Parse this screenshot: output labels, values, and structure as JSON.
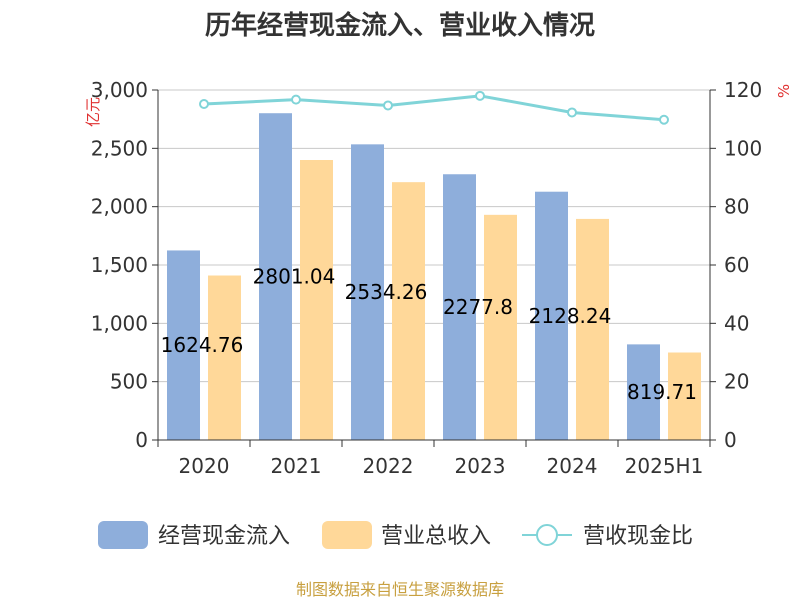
{
  "chart_data": {
    "type": "bar",
    "title": "历年经营现金流入、营业收入情况",
    "categories": [
      "2020",
      "2021",
      "2022",
      "2023",
      "2024",
      "2025H1"
    ],
    "series": [
      {
        "name": "经营现金流入",
        "type": "bar",
        "axis": "left",
        "color": "#8eaedb",
        "values": [
          1624.76,
          2801.04,
          2534.26,
          2277.8,
          2128.24,
          819.71
        ],
        "labels": [
          "1624.76",
          "2801.04",
          "2534.26",
          "2277.8",
          "2128.24",
          "819.71"
        ]
      },
      {
        "name": "营业总收入",
        "type": "bar",
        "axis": "left",
        "color": "#ffd899",
        "values": [
          1410,
          2400,
          2210,
          1930,
          1895,
          750
        ]
      },
      {
        "name": "营收现金比",
        "type": "line",
        "axis": "right",
        "color": "#80d4d8",
        "values": [
          115.2,
          116.7,
          114.7,
          118.0,
          112.3,
          109.8
        ]
      }
    ],
    "y_left": {
      "label": "亿元",
      "min": 0,
      "max": 3000,
      "ticks": [
        "0",
        "500",
        "1,000",
        "1,500",
        "2,000",
        "2,500",
        "3,000"
      ]
    },
    "y_right": {
      "label": "%",
      "min": 0,
      "max": 120,
      "ticks": [
        "0",
        "20",
        "40",
        "60",
        "80",
        "100",
        "120"
      ]
    },
    "grid": true,
    "legend_position": "bottom"
  },
  "source_note": "制图数据来自恒生聚源数据库"
}
